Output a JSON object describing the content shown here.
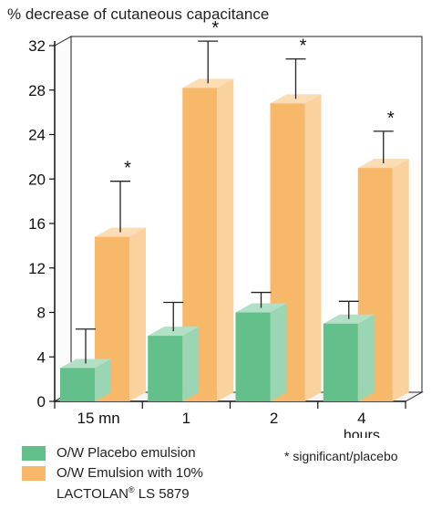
{
  "chart_data": {
    "type": "bar",
    "title": "% decrease of cutaneous capacitance",
    "categories": [
      "15 mn",
      "1",
      "2",
      "4"
    ],
    "category_sublabel": {
      "index": 3,
      "text": "hours"
    },
    "ylim": [
      0,
      32
    ],
    "yticks": [
      0,
      4,
      8,
      12,
      16,
      20,
      24,
      28,
      32
    ],
    "series": [
      {
        "name": "O/W Placebo emulsion",
        "color": "#63c08a",
        "values": [
          3.0,
          5.9,
          8.0,
          7.0
        ],
        "errors": [
          3.5,
          3.0,
          1.8,
          2.0
        ]
      },
      {
        "name": "O/W Emulsion with 10% LACTOLAN® LS 5879",
        "legend_lines": [
          "O/W Emulsion with 10%",
          "LACTOLAN",
          "®",
          " LS 5879"
        ],
        "color": "#f7b969",
        "values": [
          14.8,
          28.2,
          26.8,
          21.0
        ],
        "errors": [
          5.0,
          4.2,
          4.0,
          3.3
        ],
        "significance_markers": [
          "*",
          "*",
          "*",
          "*"
        ]
      }
    ],
    "footnote": "* significant/placebo",
    "grid": false,
    "legend_position": "bottom-left"
  }
}
